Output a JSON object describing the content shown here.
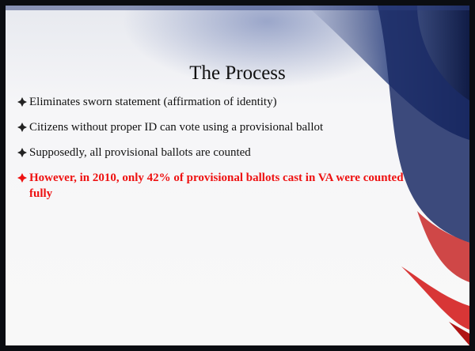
{
  "slide": {
    "title": "The Process",
    "bullets": [
      "Eliminates sworn statement (affirmation of identity)",
      "Citizens without proper ID can vote using a provisional ballot",
      "Supposedly, all provisional ballots are counted",
      "However, in 2010, only 42% of provisional ballots cast in VA were counted fully"
    ]
  }
}
